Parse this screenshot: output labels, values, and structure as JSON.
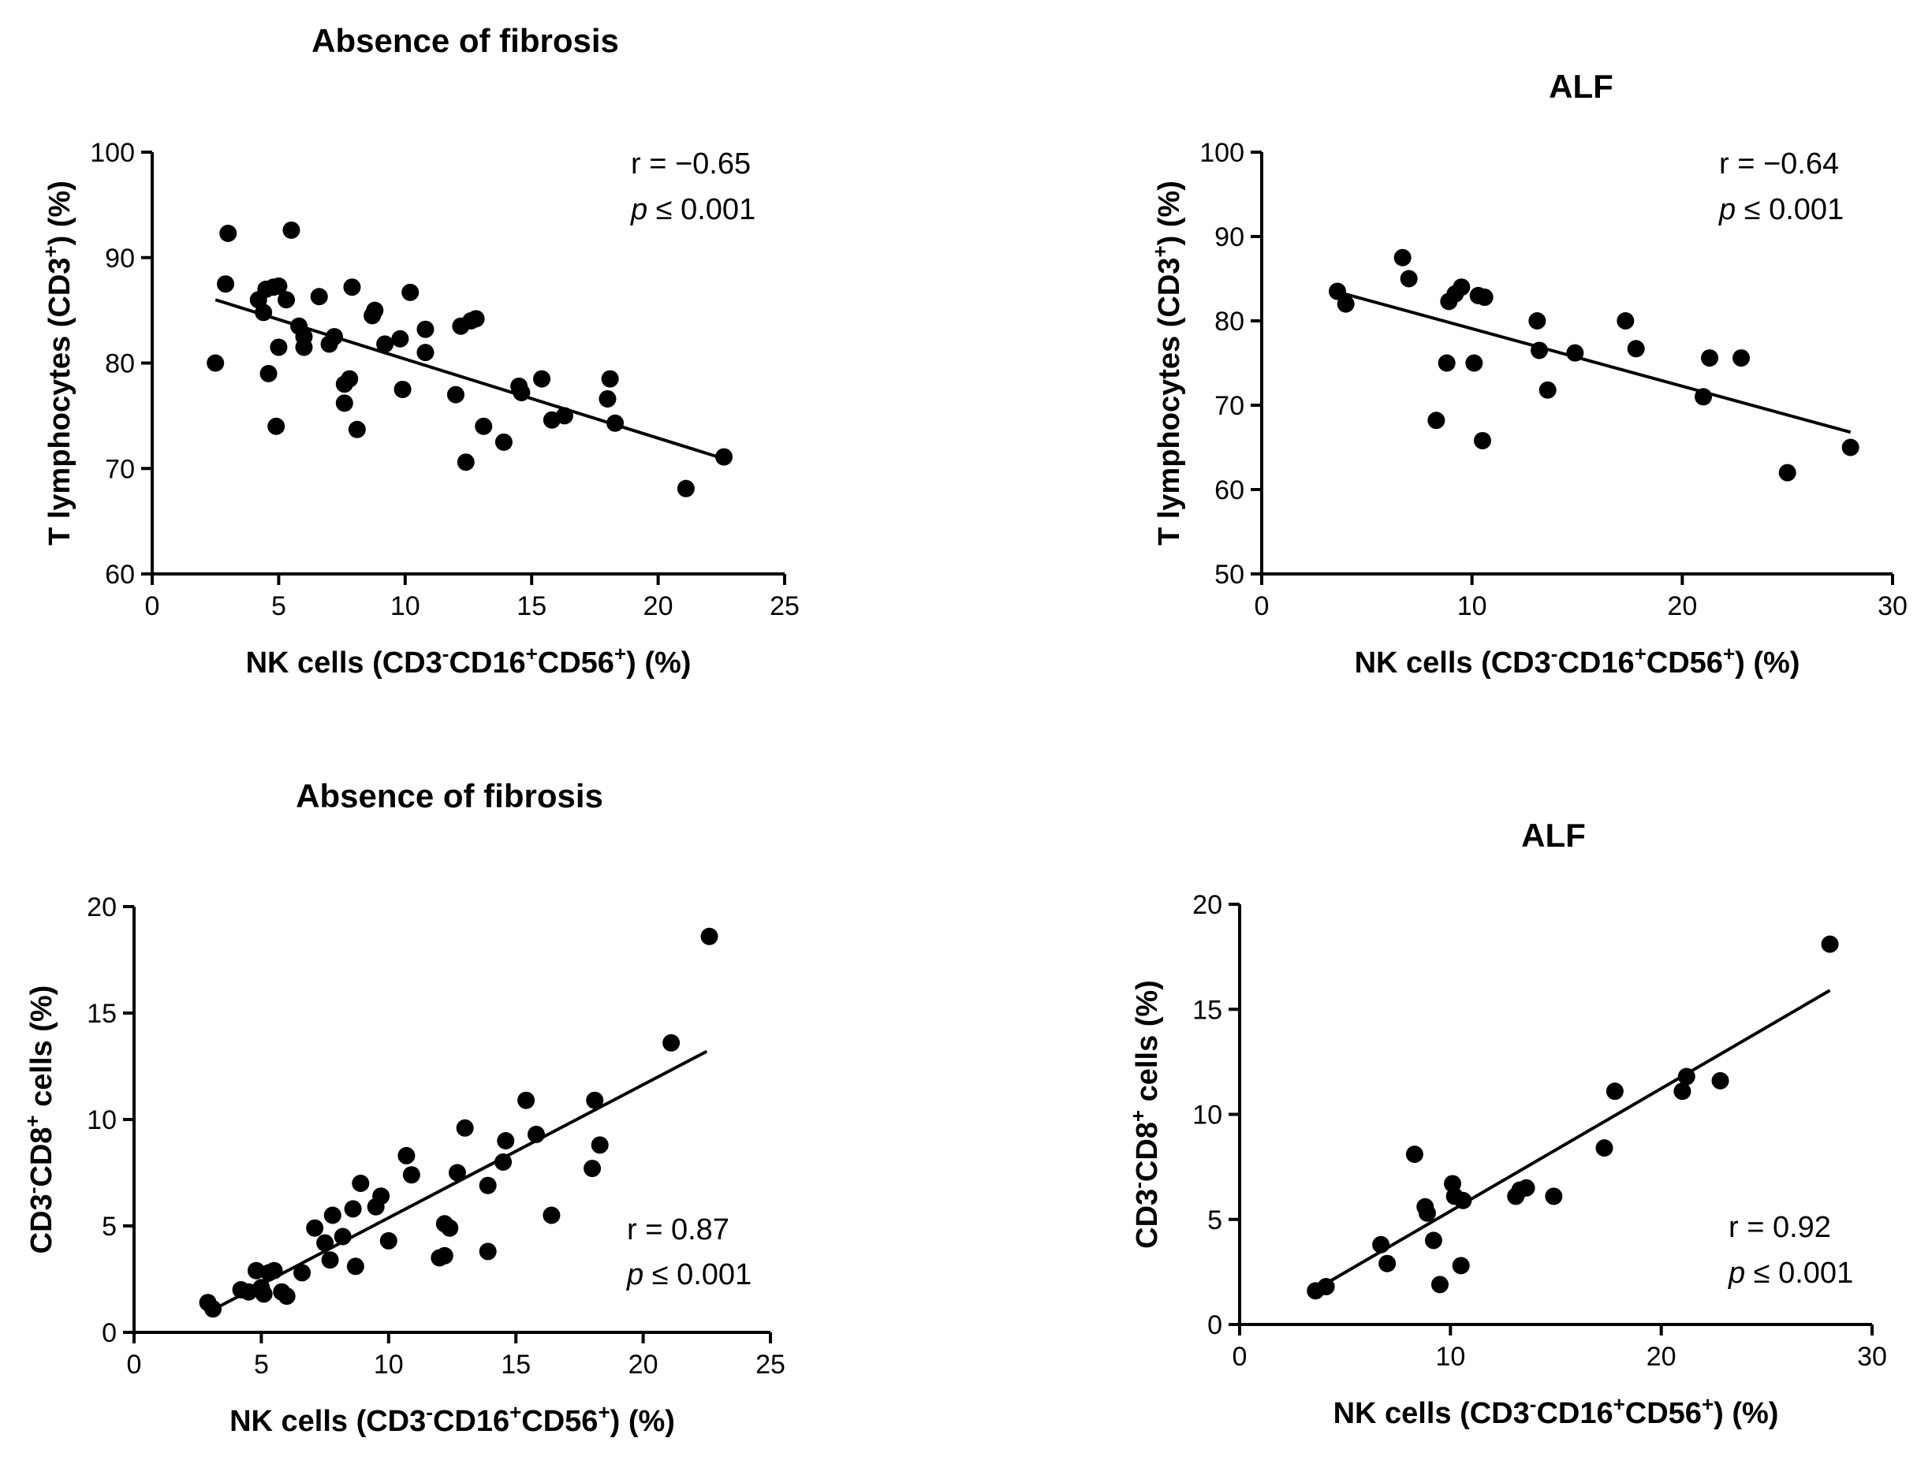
{
  "chart_data": [
    {
      "type": "scatter",
      "title": "Absence of fibrosis",
      "xlabel": {
        "pre": "NK cells (CD3",
        "sup1": "-",
        "mid1": "CD16",
        "sup2": "+",
        "mid2": "CD56",
        "sup3": "+",
        "post": ") (%)"
      },
      "ylabel": {
        "pre": "T lymphocytes (CD3",
        "sup1": "+",
        "post": ") (%)"
      },
      "xlim": [
        0,
        25
      ],
      "ylim": [
        60,
        100
      ],
      "xticks": [
        0,
        5,
        10,
        15,
        20,
        25
      ],
      "yticks": [
        60,
        70,
        80,
        90,
        100
      ],
      "r_text": "r = −0.65",
      "p_label": "p",
      "p_text": " ≤ 0.001",
      "fit": {
        "x": [
          2.5,
          22.5
        ],
        "y": [
          86.0,
          71.0
        ]
      },
      "points": [
        [
          2.5,
          80.0
        ],
        [
          2.9,
          87.5
        ],
        [
          3.0,
          92.3
        ],
        [
          4.2,
          86.0
        ],
        [
          4.4,
          84.8
        ],
        [
          4.5,
          87.0
        ],
        [
          4.6,
          79.0
        ],
        [
          4.8,
          87.2
        ],
        [
          4.9,
          74.0
        ],
        [
          5.0,
          81.5
        ],
        [
          5.0,
          87.3
        ],
        [
          5.3,
          86.0
        ],
        [
          5.5,
          92.6
        ],
        [
          5.8,
          83.5
        ],
        [
          6.0,
          81.5
        ],
        [
          6.0,
          82.5
        ],
        [
          6.6,
          86.3
        ],
        [
          7.0,
          81.8
        ],
        [
          7.2,
          82.5
        ],
        [
          7.6,
          78.0
        ],
        [
          7.6,
          76.2
        ],
        [
          7.8,
          78.5
        ],
        [
          7.9,
          87.2
        ],
        [
          8.1,
          73.7
        ],
        [
          8.7,
          84.5
        ],
        [
          8.8,
          85.0
        ],
        [
          9.2,
          81.8
        ],
        [
          9.8,
          82.3
        ],
        [
          9.9,
          77.5
        ],
        [
          10.2,
          86.7
        ],
        [
          10.8,
          83.2
        ],
        [
          10.8,
          81.0
        ],
        [
          12.0,
          77.0
        ],
        [
          12.2,
          83.5
        ],
        [
          12.4,
          70.6
        ],
        [
          12.6,
          84.0
        ],
        [
          12.8,
          84.2
        ],
        [
          13.1,
          74.0
        ],
        [
          13.9,
          72.5
        ],
        [
          14.5,
          77.8
        ],
        [
          14.6,
          77.2
        ],
        [
          15.4,
          78.5
        ],
        [
          15.8,
          74.6
        ],
        [
          16.3,
          75.0
        ],
        [
          18.1,
          78.5
        ],
        [
          18.0,
          76.6
        ],
        [
          18.3,
          74.3
        ],
        [
          21.1,
          68.1
        ],
        [
          22.6,
          71.1
        ]
      ]
    },
    {
      "type": "scatter",
      "title": "ALF",
      "xlabel": {
        "pre": "NK cells (CD3",
        "sup1": "-",
        "mid1": "CD16",
        "sup2": "+",
        "mid2": "CD56",
        "sup3": "+",
        "post": ") (%)"
      },
      "ylabel": {
        "pre": "T lymphocytes (CD3",
        "sup1": "+",
        "post": ") (%)"
      },
      "xlim": [
        0,
        30
      ],
      "ylim": [
        50,
        100
      ],
      "xticks": [
        0,
        10,
        20,
        30
      ],
      "yticks": [
        50,
        60,
        70,
        80,
        90,
        100
      ],
      "r_text": "r = −0.64",
      "p_label": "p",
      "p_text": " ≤ 0.001",
      "fit": {
        "x": [
          3.5,
          28.0
        ],
        "y": [
          83.5,
          66.8
        ]
      },
      "points": [
        [
          3.6,
          83.5
        ],
        [
          4.0,
          82.0
        ],
        [
          6.7,
          87.5
        ],
        [
          7.0,
          85.0
        ],
        [
          8.3,
          68.2
        ],
        [
          8.8,
          75.0
        ],
        [
          8.9,
          82.3
        ],
        [
          9.2,
          83.2
        ],
        [
          9.5,
          84.0
        ],
        [
          10.1,
          75.0
        ],
        [
          10.3,
          83.0
        ],
        [
          10.5,
          65.8
        ],
        [
          10.6,
          82.8
        ],
        [
          13.1,
          80.0
        ],
        [
          13.2,
          76.5
        ],
        [
          13.6,
          71.8
        ],
        [
          14.9,
          76.2
        ],
        [
          17.3,
          80.0
        ],
        [
          17.8,
          76.7
        ],
        [
          21.0,
          71.0
        ],
        [
          21.3,
          75.6
        ],
        [
          22.8,
          75.6
        ],
        [
          25.0,
          62.0
        ],
        [
          28.0,
          65.0
        ]
      ]
    },
    {
      "type": "scatter",
      "title": "Absence of fibrosis",
      "xlabel": {
        "pre": "NK cells (CD3",
        "sup1": "-",
        "mid1": "CD16",
        "sup2": "+",
        "mid2": "CD56",
        "sup3": "+",
        "post": ") (%)"
      },
      "ylabel": {
        "pre": "CD3",
        "sup1": "-",
        "mid1": "CD8",
        "sup2": "+",
        "post": " cells (%)"
      },
      "xlim": [
        0,
        25
      ],
      "ylim": [
        0,
        20
      ],
      "xticks": [
        0,
        5,
        10,
        15,
        20,
        25
      ],
      "yticks": [
        0,
        5,
        10,
        15,
        20
      ],
      "r_text": "r = 0.87",
      "p_label": "p",
      "p_text": " ≤ 0.001",
      "fit": {
        "x": [
          3.0,
          22.5
        ],
        "y": [
          1.0,
          13.2
        ]
      },
      "points": [
        [
          2.9,
          1.4
        ],
        [
          3.1,
          1.1
        ],
        [
          4.2,
          2.0
        ],
        [
          4.5,
          1.9
        ],
        [
          4.8,
          2.9
        ],
        [
          5.0,
          2.1
        ],
        [
          5.1,
          1.8
        ],
        [
          5.3,
          2.8
        ],
        [
          5.5,
          2.9
        ],
        [
          5.8,
          1.9
        ],
        [
          6.0,
          1.7
        ],
        [
          6.6,
          2.8
        ],
        [
          7.1,
          4.9
        ],
        [
          7.5,
          4.2
        ],
        [
          7.7,
          3.4
        ],
        [
          7.8,
          5.5
        ],
        [
          8.2,
          4.5
        ],
        [
          8.6,
          5.8
        ],
        [
          8.7,
          3.1
        ],
        [
          8.9,
          7.0
        ],
        [
          9.5,
          5.9
        ],
        [
          9.7,
          6.4
        ],
        [
          10.0,
          4.3
        ],
        [
          10.7,
          8.3
        ],
        [
          10.9,
          7.4
        ],
        [
          12.0,
          3.5
        ],
        [
          12.2,
          5.1
        ],
        [
          12.2,
          3.6
        ],
        [
          12.4,
          4.9
        ],
        [
          12.7,
          7.5
        ],
        [
          13.0,
          9.6
        ],
        [
          13.9,
          6.9
        ],
        [
          13.9,
          3.8
        ],
        [
          14.5,
          8.0
        ],
        [
          14.6,
          9.0
        ],
        [
          15.4,
          10.9
        ],
        [
          15.8,
          9.3
        ],
        [
          16.4,
          5.5
        ],
        [
          18.0,
          7.7
        ],
        [
          18.1,
          10.9
        ],
        [
          18.3,
          8.8
        ],
        [
          21.1,
          13.6
        ],
        [
          22.6,
          18.6
        ]
      ]
    },
    {
      "type": "scatter",
      "title": "ALF",
      "xlabel": {
        "pre": "NK cells (CD3",
        "sup1": "-",
        "mid1": "CD16",
        "sup2": "+",
        "mid2": "CD56",
        "sup3": "+",
        "post": ") (%)"
      },
      "ylabel": {
        "pre": "CD3",
        "sup1": "-",
        "mid1": "CD8",
        "sup2": "+",
        "post": " cells (%)"
      },
      "xlim": [
        0,
        30
      ],
      "ylim": [
        0,
        20
      ],
      "xticks": [
        0,
        10,
        20,
        30
      ],
      "yticks": [
        0,
        5,
        10,
        15,
        20
      ],
      "r_text": "r = 0.92",
      "p_label": "p",
      "p_text": " ≤ 0.001",
      "fit": {
        "x": [
          3.5,
          28.0
        ],
        "y": [
          1.6,
          15.9
        ]
      },
      "points": [
        [
          3.6,
          1.6
        ],
        [
          4.1,
          1.8
        ],
        [
          6.7,
          3.8
        ],
        [
          7.0,
          2.9
        ],
        [
          8.3,
          8.1
        ],
        [
          8.8,
          5.6
        ],
        [
          8.9,
          5.3
        ],
        [
          9.2,
          4.0
        ],
        [
          9.5,
          1.9
        ],
        [
          10.1,
          6.7
        ],
        [
          10.2,
          6.1
        ],
        [
          10.5,
          2.8
        ],
        [
          10.6,
          5.9
        ],
        [
          13.1,
          6.1
        ],
        [
          13.3,
          6.4
        ],
        [
          13.6,
          6.5
        ],
        [
          14.9,
          6.1
        ],
        [
          17.3,
          8.4
        ],
        [
          17.8,
          11.1
        ],
        [
          21.0,
          11.1
        ],
        [
          21.2,
          11.8
        ],
        [
          22.8,
          11.6
        ],
        [
          28.0,
          18.1
        ]
      ]
    }
  ]
}
